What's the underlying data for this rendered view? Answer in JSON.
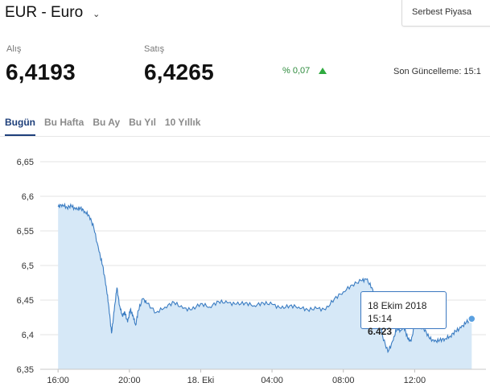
{
  "header": {
    "title": "EUR - Euro",
    "dropdown_icon": "chevron-down-icon",
    "market_select": "Serbest Piyasa"
  },
  "quote": {
    "buy_label": "Alış",
    "buy_value": "6,4193",
    "sell_label": "Satış",
    "sell_value": "6,4265",
    "change": "% 0,07",
    "change_icon": "triangle-up-icon",
    "change_color": "#2faa3f",
    "updated": "Son Güncelleme: 15:1"
  },
  "tabs": [
    {
      "label": "Bugün",
      "active": true
    },
    {
      "label": "Bu Hafta",
      "active": false
    },
    {
      "label": "Bu Ay",
      "active": false
    },
    {
      "label": "Bu Yıl",
      "active": false
    },
    {
      "label": "10 Yıllık",
      "active": false
    }
  ],
  "tooltip": {
    "date": "18 Ekim 2018 15:14",
    "value": "6.423"
  },
  "chart_data": {
    "type": "area",
    "line_color": "#3a7cc2",
    "fill_color": "#d6e8f7",
    "yticks": [
      "6,65",
      "6,6",
      "6,55",
      "6,5",
      "6,45",
      "6,4",
      "6,35"
    ],
    "ylim": [
      6.35,
      6.65
    ],
    "xticks": [
      "16:00",
      "20:00",
      "18. Eki",
      "04:00",
      "08:00",
      "12:00"
    ],
    "grid": true,
    "series": [
      {
        "x": [
          0.0,
          0.25,
          0.5,
          0.75,
          1.0,
          1.25,
          1.5,
          1.75,
          2.0,
          2.3,
          2.5,
          2.7,
          2.85,
          3.0,
          3.15,
          3.3,
          3.45,
          3.6,
          3.75,
          3.9,
          4.05,
          4.2,
          4.35,
          4.5,
          4.75,
          5.0,
          5.5,
          6.0,
          6.5,
          7.0,
          7.5,
          8.0,
          8.5,
          9.0,
          9.5,
          10.0,
          10.5,
          11.0,
          11.5,
          12.0,
          12.5,
          13.0,
          13.5,
          14.0,
          14.5,
          15.0,
          15.5,
          16.0,
          16.5,
          17.0,
          17.3,
          17.6,
          17.9,
          18.2,
          18.5,
          18.8,
          19.0,
          19.2,
          19.4,
          19.6,
          19.8,
          20.0,
          20.2,
          20.5,
          20.8,
          21.1,
          21.4,
          21.7,
          22.0,
          22.3,
          22.6,
          22.9,
          23.2
        ],
        "y": [
          6.585,
          6.588,
          6.584,
          6.586,
          6.581,
          6.583,
          6.578,
          6.572,
          6.555,
          6.52,
          6.5,
          6.47,
          6.44,
          6.402,
          6.435,
          6.468,
          6.442,
          6.428,
          6.432,
          6.418,
          6.436,
          6.428,
          6.414,
          6.435,
          6.452,
          6.445,
          6.432,
          6.44,
          6.447,
          6.438,
          6.436,
          6.445,
          6.44,
          6.448,
          6.446,
          6.444,
          6.446,
          6.442,
          6.446,
          6.444,
          6.438,
          6.442,
          6.44,
          6.436,
          6.438,
          6.436,
          6.452,
          6.462,
          6.472,
          6.478,
          6.48,
          6.468,
          6.44,
          6.398,
          6.375,
          6.392,
          6.41,
          6.406,
          6.412,
          6.395,
          6.39,
          6.415,
          6.412,
          6.41,
          6.396,
          6.39,
          6.392,
          6.394,
          6.398,
          6.405,
          6.41,
          6.418,
          6.423
        ]
      }
    ]
  }
}
